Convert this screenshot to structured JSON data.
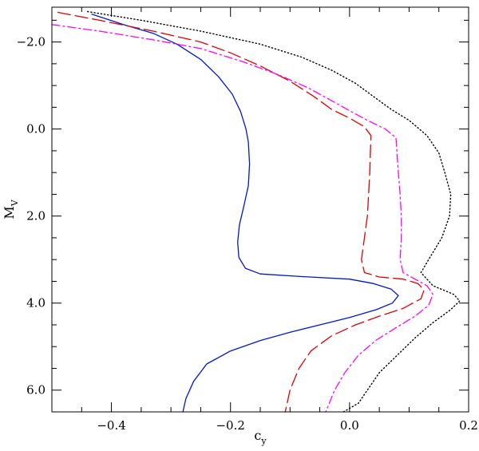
{
  "chart_data": {
    "type": "line",
    "title": "",
    "xlabel": "c",
    "xlabel_sub": "y",
    "ylabel": "M",
    "ylabel_sub": "V",
    "xlim": [
      -0.5,
      0.2
    ],
    "ylim": [
      6.5,
      -2.8
    ],
    "y_inverted": true,
    "xticks": [
      -0.4,
      -0.2,
      0.0,
      0.2
    ],
    "xtick_labels": [
      "−0.4",
      "−0.2",
      "0.0",
      "0.2"
    ],
    "yticks": [
      -2.0,
      0.0,
      2.0,
      4.0,
      6.0
    ],
    "ytick_labels": [
      "−2.0",
      "0.0",
      "2.0",
      "4.0",
      "6.0"
    ],
    "grid": false,
    "legend": "none",
    "series": [
      {
        "style": "solid",
        "color": "#0018d0",
        "points": [
          [
            -0.433,
            -2.64
          ],
          [
            -0.38,
            -2.4
          ],
          [
            -0.33,
            -2.2
          ],
          [
            -0.29,
            -1.95
          ],
          [
            -0.25,
            -1.6
          ],
          [
            -0.22,
            -1.2
          ],
          [
            -0.197,
            -0.8
          ],
          [
            -0.183,
            -0.4
          ],
          [
            -0.174,
            0.0
          ],
          [
            -0.17,
            0.3
          ],
          [
            -0.168,
            0.8
          ],
          [
            -0.17,
            1.3
          ],
          [
            -0.178,
            1.8
          ],
          [
            -0.185,
            2.2
          ],
          [
            -0.188,
            2.6
          ],
          [
            -0.186,
            2.95
          ],
          [
            -0.175,
            3.2
          ],
          [
            -0.15,
            3.33
          ],
          [
            -0.08,
            3.39
          ],
          [
            0.0,
            3.45
          ],
          [
            0.04,
            3.55
          ],
          [
            0.07,
            3.68
          ],
          [
            0.082,
            3.83
          ],
          [
            0.072,
            4.0
          ],
          [
            0.045,
            4.15
          ],
          [
            0.0,
            4.33
          ],
          [
            -0.05,
            4.5
          ],
          [
            -0.1,
            4.67
          ],
          [
            -0.15,
            4.86
          ],
          [
            -0.2,
            5.1
          ],
          [
            -0.24,
            5.4
          ],
          [
            -0.262,
            5.8
          ],
          [
            -0.275,
            6.2
          ],
          [
            -0.28,
            6.5
          ]
        ]
      },
      {
        "style": "dashed",
        "color": "#e00000",
        "points": [
          [
            -0.49,
            -2.68
          ],
          [
            -0.42,
            -2.5
          ],
          [
            -0.33,
            -2.25
          ],
          [
            -0.25,
            -2.0
          ],
          [
            -0.2,
            -1.75
          ],
          [
            -0.15,
            -1.45
          ],
          [
            -0.1,
            -1.1
          ],
          [
            -0.06,
            -0.75
          ],
          [
            -0.03,
            -0.45
          ],
          [
            0.0,
            -0.25
          ],
          [
            0.025,
            -0.05
          ],
          [
            0.036,
            0.15
          ],
          [
            0.035,
            0.5
          ],
          [
            0.034,
            1.0
          ],
          [
            0.032,
            1.5
          ],
          [
            0.03,
            2.0
          ],
          [
            0.025,
            2.5
          ],
          [
            0.02,
            3.0
          ],
          [
            0.025,
            3.3
          ],
          [
            0.05,
            3.4
          ],
          [
            0.09,
            3.45
          ],
          [
            0.115,
            3.55
          ],
          [
            0.125,
            3.7
          ],
          [
            0.12,
            3.9
          ],
          [
            0.09,
            4.12
          ],
          [
            0.05,
            4.3
          ],
          [
            0.01,
            4.5
          ],
          [
            -0.03,
            4.75
          ],
          [
            -0.065,
            5.1
          ],
          [
            -0.085,
            5.5
          ],
          [
            -0.1,
            6.0
          ],
          [
            -0.108,
            6.5
          ]
        ]
      },
      {
        "style": "dash-dot",
        "color": "#ff00ff",
        "points": [
          [
            -0.5,
            -2.4
          ],
          [
            -0.42,
            -2.25
          ],
          [
            -0.33,
            -2.05
          ],
          [
            -0.25,
            -1.85
          ],
          [
            -0.18,
            -1.55
          ],
          [
            -0.12,
            -1.25
          ],
          [
            -0.07,
            -0.95
          ],
          [
            -0.03,
            -0.65
          ],
          [
            0.0,
            -0.42
          ],
          [
            0.03,
            -0.2
          ],
          [
            0.06,
            0.0
          ],
          [
            0.078,
            0.2
          ],
          [
            0.08,
            0.6
          ],
          [
            0.082,
            1.0
          ],
          [
            0.085,
            1.5
          ],
          [
            0.087,
            2.0
          ],
          [
            0.087,
            2.5
          ],
          [
            0.085,
            3.0
          ],
          [
            0.09,
            3.3
          ],
          [
            0.11,
            3.45
          ],
          [
            0.13,
            3.6
          ],
          [
            0.14,
            3.8
          ],
          [
            0.133,
            4.05
          ],
          [
            0.11,
            4.3
          ],
          [
            0.08,
            4.55
          ],
          [
            0.045,
            4.85
          ],
          [
            0.015,
            5.2
          ],
          [
            -0.008,
            5.6
          ],
          [
            -0.025,
            6.0
          ],
          [
            -0.04,
            6.5
          ]
        ]
      },
      {
        "style": "dotted",
        "color": "#000000",
        "points": [
          [
            -0.44,
            -2.7
          ],
          [
            -0.35,
            -2.5
          ],
          [
            -0.25,
            -2.25
          ],
          [
            -0.15,
            -1.95
          ],
          [
            -0.08,
            -1.65
          ],
          [
            -0.03,
            -1.35
          ],
          [
            0.01,
            -1.05
          ],
          [
            0.04,
            -0.75
          ],
          [
            0.07,
            -0.45
          ],
          [
            0.1,
            -0.2
          ],
          [
            0.13,
            0.15
          ],
          [
            0.15,
            0.55
          ],
          [
            0.16,
            1.0
          ],
          [
            0.17,
            1.5
          ],
          [
            0.168,
            2.0
          ],
          [
            0.155,
            2.5
          ],
          [
            0.135,
            2.95
          ],
          [
            0.12,
            3.3
          ],
          [
            0.14,
            3.6
          ],
          [
            0.175,
            3.8
          ],
          [
            0.185,
            3.95
          ],
          [
            0.17,
            4.15
          ],
          [
            0.14,
            4.45
          ],
          [
            0.11,
            4.8
          ],
          [
            0.08,
            5.2
          ],
          [
            0.05,
            5.6
          ],
          [
            0.03,
            6.0
          ],
          [
            0.015,
            6.3
          ],
          [
            -0.01,
            6.5
          ]
        ]
      }
    ]
  }
}
